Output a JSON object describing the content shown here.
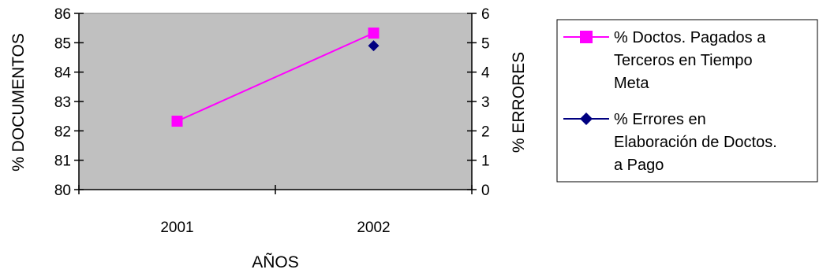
{
  "chart_data": {
    "type": "line",
    "title": "",
    "xlabel": "AÑOS",
    "ylabel": "% DOCUMENTOS",
    "y2label": "% ERRORES",
    "categories": [
      "2001",
      "2002"
    ],
    "ylim": [
      80,
      86
    ],
    "yticks": [
      80,
      81,
      82,
      83,
      84,
      85,
      86
    ],
    "y2lim": [
      0,
      6
    ],
    "y2ticks": [
      0,
      1,
      2,
      3,
      4,
      5,
      6
    ],
    "grid": false,
    "plot_background": "#c0c0c0",
    "legend_position": "right",
    "series": [
      {
        "name": "% Doctos. Pagados a Terceros en Tiempo Meta",
        "legend_lines": [
          "% Doctos. Pagados a",
          "Terceros en Tiempo",
          "Meta"
        ],
        "axis": "left",
        "marker": "square",
        "color": "#ff00ff",
        "values": [
          82.33,
          85.33
        ]
      },
      {
        "name": "% Errores en Elaboración de Doctos. a Pago",
        "legend_lines": [
          "% Errores en",
          "Elaboración de Doctos.",
          "a Pago"
        ],
        "axis": "right",
        "marker": "diamond",
        "color": "#000080",
        "values": [
          null,
          4.9
        ]
      }
    ]
  }
}
